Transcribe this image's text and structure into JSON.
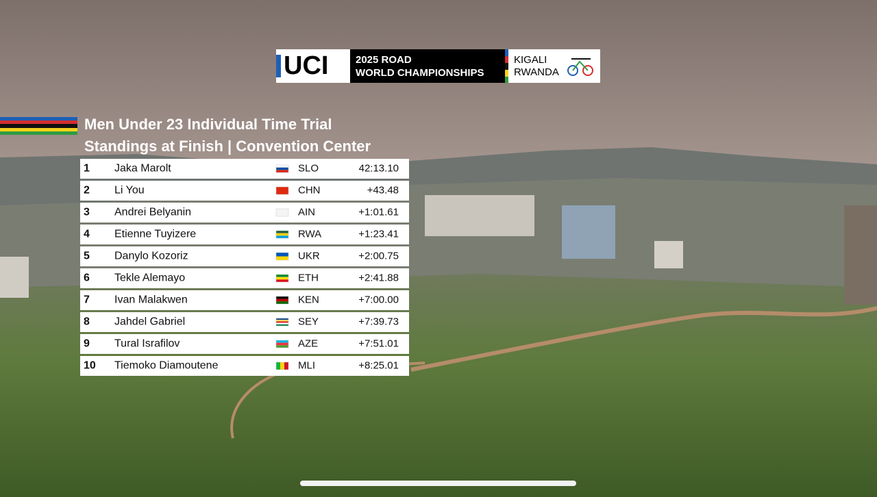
{
  "logo": {
    "brand": "UCI",
    "event_line1": "2025 ROAD",
    "event_line2": "WORLD CHAMPIONSHIPS",
    "city": "KIGALI",
    "country": "RWANDA"
  },
  "header": {
    "title": "Men Under 23 Individual Time Trial",
    "subtitle": "Standings at Finish | Convention Center"
  },
  "table": {
    "rows": [
      [
        1,
        "Jaka Marolt",
        "SLO",
        "42:13.10"
      ],
      [
        2,
        "Li You",
        "CHN",
        "+43.48"
      ],
      [
        3,
        "Andrei Belyanin",
        "AIN",
        "+1:01.61"
      ],
      [
        4,
        "Etienne Tuyizere",
        "RWA",
        "+1:23.41"
      ],
      [
        5,
        "Danylo Kozoriz",
        "UKR",
        "+2:00.75"
      ],
      [
        6,
        "Tekle Alemayo",
        "ETH",
        "+2:41.88"
      ],
      [
        7,
        "Ivan Malakwen",
        "KEN",
        "+7:00.00"
      ],
      [
        8,
        "Jahdel Gabriel",
        "SEY",
        "+7:39.73"
      ],
      [
        9,
        "Tural Israfilov",
        "AZE",
        "+7:51.01"
      ],
      [
        10,
        "Tiemoko Diamoutene",
        "MLI",
        "+8:25.01"
      ]
    ]
  }
}
